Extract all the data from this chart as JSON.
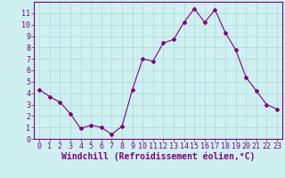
{
  "x": [
    0,
    1,
    2,
    3,
    4,
    5,
    6,
    7,
    8,
    9,
    10,
    11,
    12,
    13,
    14,
    15,
    16,
    17,
    18,
    19,
    20,
    21,
    22,
    23
  ],
  "y": [
    4.3,
    3.7,
    3.2,
    2.2,
    0.9,
    1.2,
    1.0,
    0.4,
    1.1,
    4.3,
    7.0,
    6.8,
    8.4,
    8.7,
    10.2,
    11.4,
    10.2,
    11.3,
    9.3,
    7.8,
    5.4,
    4.2,
    3.0,
    2.6
  ],
  "line_color": "#800080",
  "marker": "D",
  "marker_size": 2,
  "bg_color": "#cff0f0",
  "grid_color": "#b0dede",
  "xlabel": "Windchill (Refroidissement éolien,°C)",
  "xlim": [
    -0.5,
    23.5
  ],
  "ylim": [
    0,
    12
  ],
  "yticks": [
    0,
    1,
    2,
    3,
    4,
    5,
    6,
    7,
    8,
    9,
    10,
    11
  ],
  "xticks": [
    0,
    1,
    2,
    3,
    4,
    5,
    6,
    7,
    8,
    9,
    10,
    11,
    12,
    13,
    14,
    15,
    16,
    17,
    18,
    19,
    20,
    21,
    22,
    23
  ],
  "tick_fontsize": 6,
  "xlabel_fontsize": 7,
  "label_color": "#800080"
}
